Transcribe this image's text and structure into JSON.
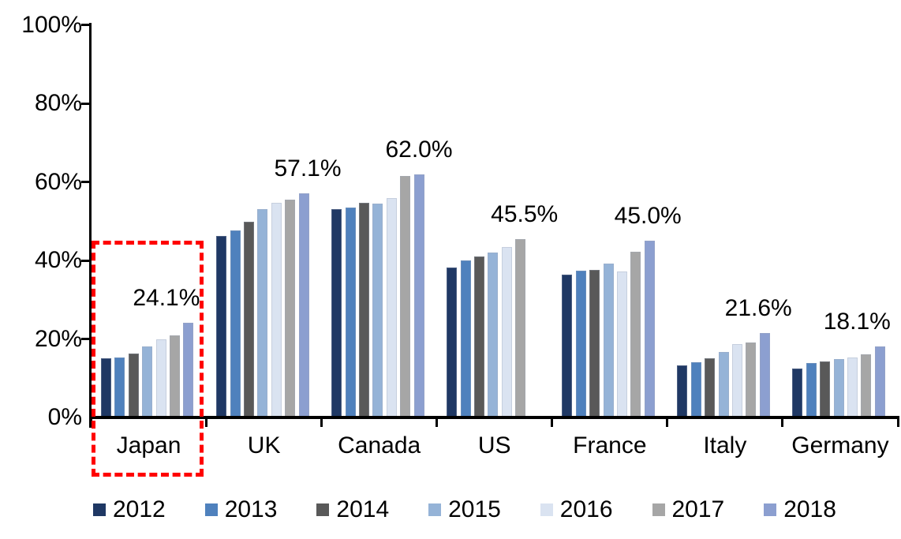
{
  "chart_data": {
    "type": "bar",
    "title": "",
    "xlabel": "",
    "ylabel": "",
    "categories": [
      "Japan",
      "UK",
      "Canada",
      "US",
      "France",
      "Italy",
      "Germany"
    ],
    "series": [
      {
        "name": "2012",
        "color": "#1F3864",
        "values": [
          15.0,
          46.3,
          53.0,
          38.2,
          36.4,
          13.2,
          12.4
        ]
      },
      {
        "name": "2013",
        "color": "#4F81BD",
        "values": [
          15.2,
          47.7,
          53.4,
          40.0,
          37.4,
          14.1,
          13.9
        ]
      },
      {
        "name": "2014",
        "color": "#595959",
        "values": [
          16.3,
          49.8,
          54.7,
          41.0,
          37.5,
          15.1,
          14.3
        ]
      },
      {
        "name": "2015",
        "color": "#95B3D7",
        "values": [
          18.0,
          53.0,
          54.5,
          42.1,
          39.3,
          16.7,
          14.8
        ]
      },
      {
        "name": "2016",
        "color": "#DAE3F1",
        "values": [
          19.9,
          54.6,
          55.9,
          43.5,
          37.2,
          18.7,
          15.3
        ]
      },
      {
        "name": "2017",
        "color": "#A6A6A6",
        "values": [
          21.0,
          55.5,
          61.5,
          45.5,
          42.3,
          19.2,
          16.0
        ]
      },
      {
        "name": "2018",
        "color": "#8C9FD0",
        "values": [
          24.1,
          57.1,
          62.0,
          null,
          45.0,
          21.6,
          18.1
        ]
      }
    ],
    "data_labels": [
      "24.1%",
      "57.1%",
      "62.0%",
      "45.5%",
      "45.0%",
      "21.6%",
      "18.1%"
    ],
    "ylim": [
      0,
      100
    ],
    "ytick_labels": [
      "0%",
      "20%",
      "40%",
      "60%",
      "80%",
      "100%"
    ],
    "ytick_values": [
      0,
      20,
      40,
      60,
      80,
      100
    ],
    "grid": false,
    "legend_position": "bottom",
    "annotation": {
      "type": "dashed-box",
      "color": "#FF0000",
      "around_category": "Japan"
    }
  }
}
